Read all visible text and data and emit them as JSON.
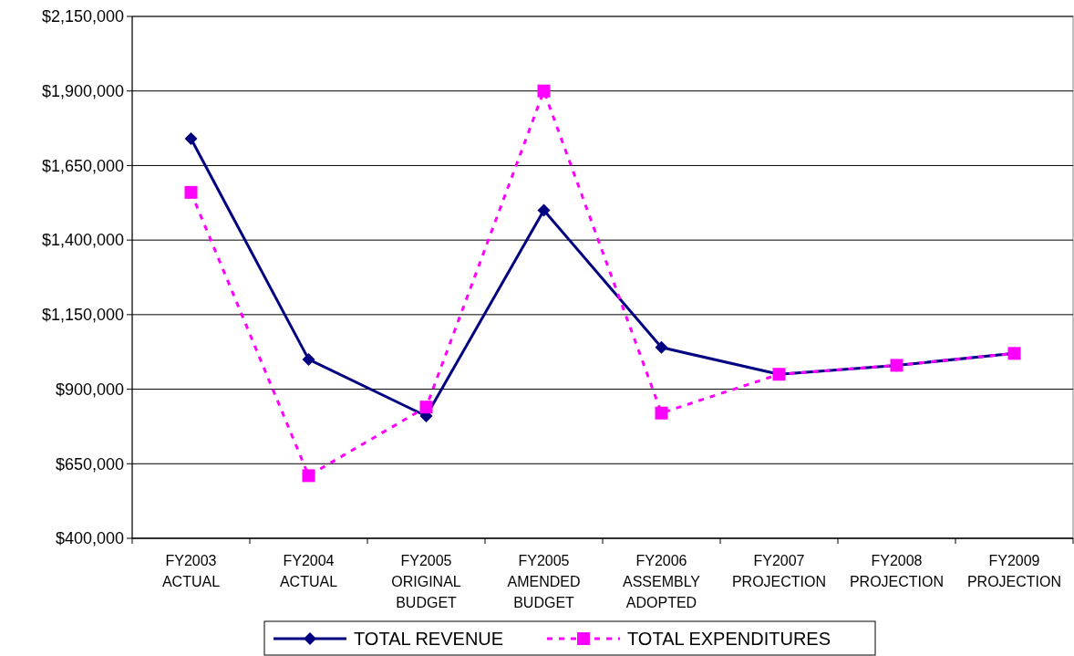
{
  "chart_data": {
    "type": "line",
    "categories": [
      "FY2003\nACTUAL",
      "FY2004\nACTUAL",
      "FY2005\nORIGINAL\nBUDGET",
      "FY2005\nAMENDED\nBUDGET",
      "FY2006\nASSEMBLY\nADOPTED",
      "FY2007\nPROJECTION",
      "FY2008\nPROJECTION",
      "FY2009\nPROJECTION"
    ],
    "series": [
      {
        "name": "TOTAL REVENUE",
        "color": "#000080",
        "marker": "diamond",
        "line_style": "solid",
        "values": [
          1740000,
          1000000,
          810000,
          1500000,
          1040000,
          950000,
          980000,
          1020000
        ]
      },
      {
        "name": "TOTAL EXPENDITURES",
        "color": "#ff00ff",
        "marker": "square",
        "line_style": "dashed",
        "values": [
          1560000,
          610000,
          840000,
          1900000,
          820000,
          950000,
          980000,
          1020000
        ]
      }
    ],
    "ylim": [
      400000,
      2150000
    ],
    "yticks": [
      {
        "value": 400000,
        "label": "$400,000"
      },
      {
        "value": 650000,
        "label": "$650,000"
      },
      {
        "value": 900000,
        "label": "$900,000"
      },
      {
        "value": 1150000,
        "label": "$1,150,000"
      },
      {
        "value": 1400000,
        "label": "$1,400,000"
      },
      {
        "value": 1650000,
        "label": "$1,650,000"
      },
      {
        "value": 1900000,
        "label": "$1,900,000"
      },
      {
        "value": 2150000,
        "label": "$2,150,000"
      }
    ],
    "grid": "y",
    "legend": "bottom"
  }
}
